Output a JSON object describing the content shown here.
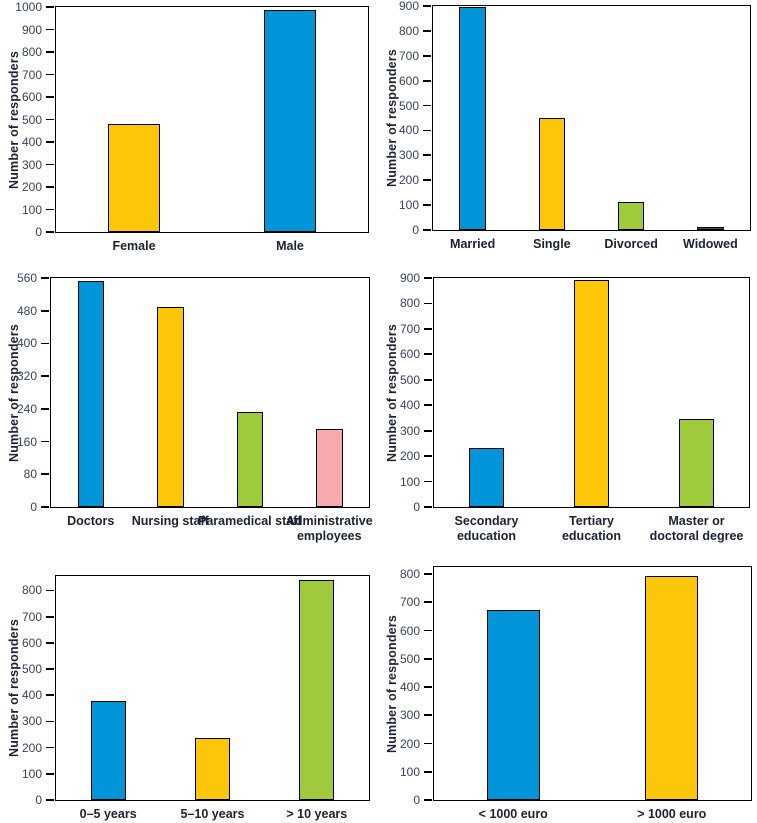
{
  "figure": {
    "y_axis_title": "Number of responders",
    "panel_count": 6,
    "layout": "2 columns x 3 rows of bar charts"
  },
  "palette": {
    "blue": "#0095d8",
    "yellow": "#fdc608",
    "green": "#9fca3b",
    "pink": "#f6a9ae",
    "navy": "#3c4e6e",
    "axis": "#000000",
    "bar_border": "#000000",
    "tick_text": "#3a4060",
    "label_text": "#1c2134"
  },
  "chart_data": [
    {
      "id": "gender",
      "type": "bar",
      "categories": [
        "Female",
        "Male"
      ],
      "values": [
        480,
        985
      ],
      "colors": [
        "yellow",
        "blue"
      ],
      "title": "",
      "xlabel": "",
      "ylabel": "Number of responders",
      "yticks": [
        0,
        100,
        200,
        300,
        400,
        500,
        600,
        700,
        800,
        900,
        1000
      ],
      "ylim": [
        0,
        1000
      ],
      "grid": false,
      "legend": "none"
    },
    {
      "id": "marital-status",
      "type": "bar",
      "categories": [
        "Married",
        "Single",
        "Divorced",
        "Widowed"
      ],
      "values": [
        895,
        448,
        113,
        12
      ],
      "colors": [
        "blue",
        "yellow",
        "green",
        "navy"
      ],
      "title": "",
      "xlabel": "",
      "ylabel": "Number of responders",
      "yticks": [
        0,
        100,
        200,
        300,
        400,
        500,
        600,
        700,
        800,
        900
      ],
      "ylim": [
        0,
        900
      ],
      "grid": false,
      "legend": "none"
    },
    {
      "id": "profession",
      "type": "bar",
      "categories": [
        "Doctors",
        "Nursing staff",
        "Paramedical staff",
        "Administrative employees"
      ],
      "values": [
        553,
        490,
        233,
        190
      ],
      "colors": [
        "blue",
        "yellow",
        "green",
        "pink"
      ],
      "title": "",
      "xlabel": "",
      "ylabel": "Number of responders",
      "yticks": [
        0,
        80,
        160,
        240,
        320,
        400,
        480,
        560
      ],
      "ylim": [
        0,
        560
      ],
      "grid": false,
      "legend": "none"
    },
    {
      "id": "education",
      "type": "bar",
      "categories": [
        "Secondary education",
        "Tertiary education",
        "Master or doctoral degree"
      ],
      "values": [
        230,
        893,
        345
      ],
      "colors": [
        "blue",
        "yellow",
        "green"
      ],
      "title": "",
      "xlabel": "",
      "ylabel": "Number of responders",
      "yticks": [
        0,
        100,
        200,
        300,
        400,
        500,
        600,
        700,
        800,
        900
      ],
      "ylim": [
        0,
        900
      ],
      "grid": false,
      "legend": "none"
    },
    {
      "id": "years-of-experience",
      "type": "bar",
      "categories": [
        "0–5 years",
        "5–10 years",
        "> 10 years"
      ],
      "values": [
        378,
        237,
        840
      ],
      "colors": [
        "blue",
        "yellow",
        "green"
      ],
      "title": "",
      "xlabel": "",
      "ylabel": "Number of responders",
      "yticks": [
        0,
        100,
        200,
        300,
        400,
        500,
        600,
        700,
        800
      ],
      "ylim": [
        0,
        855
      ],
      "grid": false,
      "legend": "none"
    },
    {
      "id": "income",
      "type": "bar",
      "categories": [
        "< 1000 euro",
        "> 1000 euro"
      ],
      "values": [
        672,
        793
      ],
      "colors": [
        "blue",
        "yellow"
      ],
      "title": "",
      "xlabel": "",
      "ylabel": "Number of responders",
      "yticks": [
        0,
        100,
        200,
        300,
        400,
        500,
        600,
        700,
        800
      ],
      "ylim": [
        0,
        825
      ],
      "grid": false,
      "legend": "none"
    }
  ]
}
